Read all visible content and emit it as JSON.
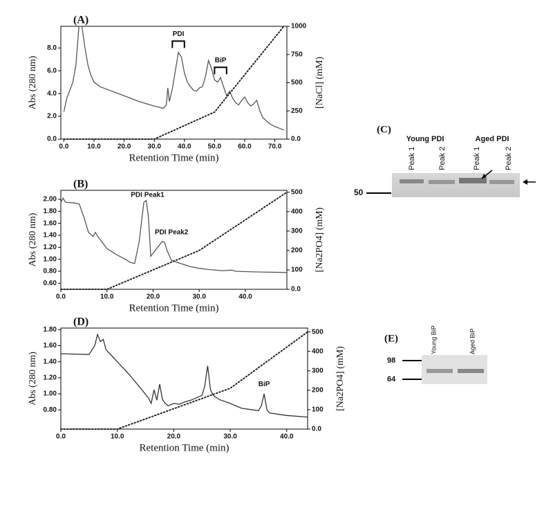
{
  "chart_data": [
    {
      "type": "line",
      "panel": "(A)",
      "xlabel": "Retention Time (min)",
      "ylabel": "Abs (280 nm)",
      "y2label": "[NaCl] (mM)",
      "annotations": [
        "PDI",
        "BiP"
      ],
      "xlim": [
        -1,
        74
      ],
      "ylim": [
        0,
        9.9
      ],
      "y2lim": [
        0,
        1000
      ],
      "xticks": [
        {
          "value": 0,
          "label": "0.0"
        },
        {
          "value": 10,
          "label": "10.0"
        },
        {
          "value": 20,
          "label": "20.0"
        },
        {
          "value": 30,
          "label": "30.0"
        },
        {
          "value": 40,
          "label": "40.0"
        },
        {
          "value": 50,
          "label": "50.0"
        },
        {
          "value": 60,
          "label": "60.0"
        },
        {
          "value": 70,
          "label": "70.0"
        }
      ],
      "yticks": [
        {
          "value": 0,
          "label": "0.0"
        },
        {
          "value": 2,
          "label": "2.0"
        },
        {
          "value": 4,
          "label": "4.0"
        },
        {
          "value": 6,
          "label": "6.0"
        },
        {
          "value": 8,
          "label": "8.0"
        }
      ],
      "y2ticks": [
        {
          "value": 0,
          "label": "0.0"
        },
        250,
        500,
        750,
        1000
      ],
      "series": [
        {
          "color": "#555555",
          "style": "solid",
          "x": [
            0,
            1,
            2,
            3,
            4,
            5,
            6,
            7,
            8,
            9,
            10,
            12,
            15,
            20,
            25,
            30,
            33,
            34,
            34.5,
            35,
            36,
            37,
            38,
            39,
            40,
            41,
            42,
            43,
            44,
            45,
            46,
            47,
            48,
            49,
            50,
            51,
            52,
            53,
            54,
            55,
            56,
            57,
            58,
            59,
            60,
            61,
            62,
            63,
            64,
            65,
            66,
            68,
            70,
            72,
            73
          ],
          "values": [
            2.4,
            3.6,
            4.3,
            5.0,
            6.5,
            9.9,
            9.9,
            8.0,
            6.5,
            5.6,
            5.0,
            4.6,
            4.3,
            3.8,
            3.3,
            2.9,
            2.7,
            3.0,
            4.5,
            3.3,
            4.4,
            6.0,
            7.6,
            7.2,
            5.8,
            5.0,
            4.6,
            4.3,
            4.2,
            4.5,
            4.6,
            5.5,
            6.9,
            6.2,
            5.2,
            5.0,
            5.4,
            4.6,
            3.8,
            4.2,
            3.6,
            3.2,
            3.0,
            3.4,
            3.7,
            3.2,
            2.9,
            3.1,
            3.4,
            2.5,
            1.9,
            1.4,
            1.1,
            0.9,
            0.8
          ]
        },
        {
          "color": "#222222",
          "style": "dotted",
          "axis": "y2",
          "x": [
            0,
            30,
            50,
            73
          ],
          "values": [
            0,
            0,
            240,
            1000
          ]
        }
      ]
    },
    {
      "type": "line",
      "panel": "(B)",
      "xlabel": "Retention Time (min)",
      "ylabel": "Abs (280 nm)",
      "y2label": "[Na2PO4] (mM)",
      "annotations": [
        "PDI Peak1",
        "PDI Peak2"
      ],
      "xlim": [
        0,
        49
      ],
      "ylim": [
        0.5,
        2.15
      ],
      "y2lim": [
        0,
        510
      ],
      "xticks": [
        {
          "value": 0,
          "label": "0.0"
        },
        {
          "value": 10,
          "label": "10.0"
        },
        {
          "value": 20,
          "label": "20.0"
        },
        {
          "value": 30,
          "label": "30.0"
        },
        {
          "value": 40,
          "label": "40.0"
        }
      ],
      "yticks": [
        {
          "value": 0.6,
          "label": "0.60"
        },
        {
          "value": 0.8,
          "label": "0.80"
        },
        {
          "value": 1.0,
          "label": "1.00"
        },
        {
          "value": 1.2,
          "label": "1.20"
        },
        {
          "value": 1.4,
          "label": "1.40"
        },
        {
          "value": 1.6,
          "label": "1.60"
        },
        {
          "value": 1.8,
          "label": "1.80"
        },
        {
          "value": 2.0,
          "label": "2.00"
        }
      ],
      "y2ticks": [
        {
          "value": 0,
          "label": "0.0"
        },
        100,
        200,
        300,
        400,
        500
      ],
      "series": [
        {
          "color": "#555555",
          "style": "solid",
          "x": [
            0,
            0.5,
            1,
            3,
            4,
            5,
            6,
            7,
            7.5,
            8,
            10,
            12,
            14,
            15,
            16,
            17,
            18,
            18.5,
            19,
            19.5,
            20,
            21,
            22,
            22.5,
            23,
            24,
            26,
            28,
            30,
            32,
            35,
            37,
            38,
            42,
            49
          ],
          "values": [
            1.95,
            2.02,
            1.95,
            1.94,
            1.92,
            1.7,
            1.45,
            1.38,
            1.45,
            1.38,
            1.18,
            1.08,
            1.0,
            0.95,
            0.93,
            1.3,
            1.95,
            1.98,
            1.7,
            1.05,
            1.1,
            1.2,
            1.3,
            1.28,
            1.15,
            0.98,
            0.93,
            0.88,
            0.85,
            0.83,
            0.81,
            0.82,
            0.8,
            0.79,
            0.78
          ]
        },
        {
          "color": "#222222",
          "style": "dotted",
          "axis": "y2",
          "x": [
            0,
            10,
            30,
            49
          ],
          "values": [
            0,
            0,
            200,
            500
          ]
        }
      ]
    },
    {
      "type": "line",
      "panel": "(D)",
      "xlabel": "Retention Time (min)",
      "ylabel": "Abs (280 nm)",
      "y2label": "[Na2PO4] (mM)",
      "annotations": [
        "BiP"
      ],
      "xlim": [
        0,
        43.7
      ],
      "ylim": [
        0.56,
        1.82
      ],
      "y2lim": [
        0,
        520
      ],
      "xticks": [
        {
          "value": 0,
          "label": "0.0"
        },
        {
          "value": 10,
          "label": "10.0"
        },
        {
          "value": 20,
          "label": "20.0"
        },
        {
          "value": 30,
          "label": "30.0"
        },
        {
          "value": 40,
          "label": "40.0"
        }
      ],
      "yticks": [
        {
          "value": 0.8,
          "label": "0.80"
        },
        {
          "value": 1.0,
          "label": "1.00"
        },
        {
          "value": 1.2,
          "label": "1.20"
        },
        {
          "value": 1.4,
          "label": "1.40"
        },
        {
          "value": 1.6,
          "label": "1.60"
        },
        {
          "value": 1.8,
          "label": "1.80"
        }
      ],
      "y2ticks": [
        {
          "value": 0,
          "label": "0.0"
        },
        100,
        200,
        300,
        400,
        500
      ],
      "series": [
        {
          "color": "#333333",
          "style": "solid",
          "x": [
            0,
            5,
            6,
            6.5,
            7,
            7.5,
            8,
            10,
            12,
            14,
            15.5,
            16,
            16.5,
            17,
            17.5,
            18,
            18.5,
            19,
            20,
            21,
            22,
            23,
            24,
            25,
            25.5,
            26,
            26.5,
            27,
            28,
            30,
            32,
            34,
            35,
            35.5,
            36,
            36.5,
            37,
            40,
            43.7
          ],
          "values": [
            1.5,
            1.49,
            1.6,
            1.74,
            1.65,
            1.68,
            1.55,
            1.4,
            1.25,
            1.08,
            0.95,
            0.88,
            1.05,
            0.92,
            1.12,
            0.93,
            0.88,
            0.85,
            0.88,
            0.87,
            0.9,
            0.92,
            0.95,
            0.98,
            1.1,
            1.35,
            1.05,
            0.98,
            0.93,
            0.88,
            0.82,
            0.8,
            0.79,
            0.85,
            1.0,
            0.8,
            0.76,
            0.73,
            0.71
          ]
        },
        {
          "color": "#222222",
          "style": "dotted",
          "axis": "y2",
          "x": [
            0,
            10,
            30,
            43.7
          ],
          "values": [
            0,
            0,
            210,
            500
          ]
        }
      ]
    }
  ],
  "gels": [
    {
      "label": "(C)",
      "groups": [
        "Young PDI",
        "Aged PDI"
      ],
      "lanes": [
        "Peak 1",
        "Peak 2",
        "Peak 1",
        "Peak 2"
      ],
      "markers": [
        "50"
      ]
    },
    {
      "label": "(E)",
      "lanes": [
        "Young BiP",
        "Aged BiP"
      ],
      "markers": [
        "98",
        "64"
      ]
    }
  ]
}
